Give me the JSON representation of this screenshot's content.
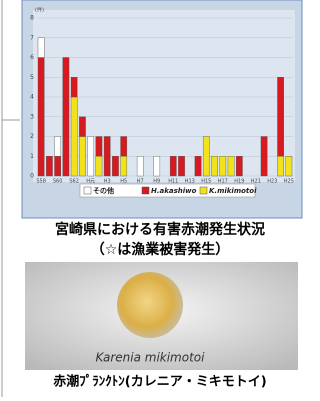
{
  "chart_data": {
    "type": "bar",
    "stacked": true,
    "y_unit": "(件)",
    "categories": [
      "S58",
      null,
      "S60",
      null,
      "S62",
      null,
      "H元",
      null,
      "H3",
      null,
      "H5",
      null,
      "H7",
      null,
      "H9",
      null,
      "H11",
      null,
      "H13",
      null,
      "H15",
      null,
      "H17",
      null,
      "H19",
      null,
      "H21",
      null,
      "H23",
      null,
      "H25"
    ],
    "series": [
      {
        "name": "その他",
        "color": "#ffffff",
        "values": [
          1,
          0,
          1,
          0,
          0,
          0,
          2,
          0,
          0,
          0,
          0,
          0,
          1,
          0,
          1,
          0,
          0,
          0,
          0,
          0,
          0,
          0,
          0,
          0,
          0,
          0,
          0,
          0,
          0,
          0,
          0
        ]
      },
      {
        "name": "H.akashiwo",
        "color": "#d71920",
        "values": [
          6,
          1,
          1,
          6,
          1,
          1,
          0,
          1,
          2,
          1,
          1,
          0,
          0,
          0,
          0,
          0,
          1,
          1,
          0,
          1,
          0,
          0,
          0,
          0,
          1,
          0,
          0,
          2,
          0,
          4,
          0
        ]
      },
      {
        "name": "K.mikimotoi",
        "color": "#f2e21b",
        "values": [
          0,
          0,
          0,
          0,
          4,
          2,
          0,
          1,
          0,
          0,
          1,
          0,
          0,
          0,
          0,
          0,
          0,
          0,
          0,
          0,
          2,
          1,
          1,
          1,
          0,
          0,
          0,
          0,
          0,
          1,
          1
        ]
      }
    ],
    "ylim": [
      0,
      8
    ],
    "yticks": [
      0,
      1,
      2,
      3,
      4,
      5,
      6,
      7,
      8
    ],
    "grid": true
  },
  "captions": {
    "title": "宮崎県における有害赤潮発生状況",
    "note": "（☆は漁業被害発生）",
    "photo_label": "Karenia mikimotoi",
    "photo_caption": "赤潮ﾌﾟﾗﾝｸﾄﾝ(カレニア・ミキモトイ)"
  }
}
